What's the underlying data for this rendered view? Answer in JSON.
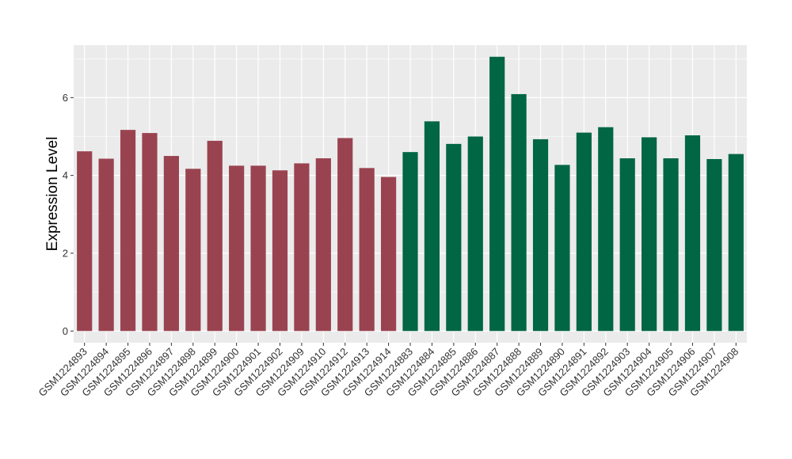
{
  "chart_data": {
    "type": "bar",
    "title": "",
    "xlabel": "",
    "ylabel": "Expression Level",
    "ylim": [
      -0.3,
      7.35
    ],
    "yticks": [
      0,
      2,
      4,
      6
    ],
    "grid": true,
    "legend": "none",
    "categories": [
      "GSM1224893",
      "GSM1224894",
      "GSM1224895",
      "GSM1224896",
      "GSM1224897",
      "GSM1224898",
      "GSM1224899",
      "GSM1224900",
      "GSM1224901",
      "GSM1224902",
      "GSM1224909",
      "GSM1224910",
      "GSM1224912",
      "GSM1224913",
      "GSM1224914",
      "GSM1224883",
      "GSM1224884",
      "GSM1224885",
      "GSM1224886",
      "GSM1224887",
      "GSM1224888",
      "GSM1224889",
      "GSM1224890",
      "GSM1224891",
      "GSM1224892",
      "GSM1224903",
      "GSM1224904",
      "GSM1224905",
      "GSM1224906",
      "GSM1224907",
      "GSM1224908"
    ],
    "values": [
      4.62,
      4.43,
      5.17,
      5.09,
      4.5,
      4.17,
      4.89,
      4.25,
      4.25,
      4.13,
      4.31,
      4.44,
      4.96,
      4.19,
      3.96,
      4.6,
      5.39,
      4.81,
      5.0,
      7.05,
      6.09,
      4.93,
      4.27,
      5.1,
      5.24,
      4.44,
      4.98,
      4.44,
      5.03,
      4.42,
      4.55
    ],
    "groups": [
      0,
      0,
      0,
      0,
      0,
      0,
      0,
      0,
      0,
      0,
      0,
      0,
      0,
      0,
      0,
      1,
      1,
      1,
      1,
      1,
      1,
      1,
      1,
      1,
      1,
      1,
      1,
      1,
      1,
      1,
      1
    ],
    "group_colors": [
      "#9a4350",
      "#006644"
    ]
  }
}
